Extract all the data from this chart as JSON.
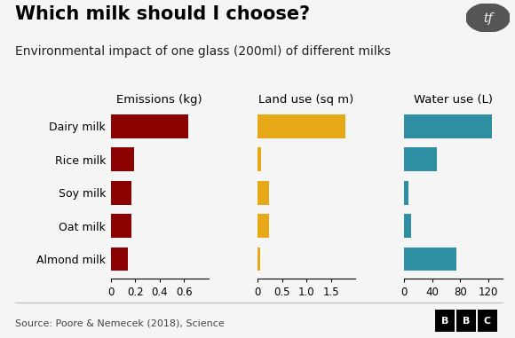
{
  "title": "Which milk should I choose?",
  "subtitle": "Environmental impact of one glass (200ml) of different milks",
  "categories": [
    "Dairy milk",
    "Rice milk",
    "Soy milk",
    "Oat milk",
    "Almond milk"
  ],
  "emissions": [
    0.636,
    0.188,
    0.172,
    0.172,
    0.14
  ],
  "land_use": [
    1.79,
    0.07,
    0.24,
    0.24,
    0.06
  ],
  "water_use": [
    125.6,
    46.4,
    5.6,
    9.8,
    74.3
  ],
  "emissions_color": "#8B0000",
  "land_use_color": "#E6A817",
  "water_use_color": "#2E8FA3",
  "background_color": "#f5f5f5",
  "emissions_xlabel": "Emissions (kg)",
  "land_use_xlabel": "Land use (sq m)",
  "water_use_xlabel": "Water use (L)",
  "emissions_xlim": [
    0,
    0.8
  ],
  "emissions_xticks": [
    0,
    0.2,
    0.4,
    0.6
  ],
  "land_use_xlim": [
    0,
    2.0
  ],
  "land_use_xticks": [
    0,
    0.5,
    1.0,
    1.5
  ],
  "water_use_xlim": [
    0,
    140
  ],
  "water_use_xticks": [
    0,
    40,
    80,
    120
  ],
  "source_text": "Source: Poore & Nemecek (2018), Science",
  "bbc_text": "BBC",
  "title_fontsize": 15,
  "subtitle_fontsize": 10,
  "col_label_fontsize": 9.5,
  "cat_label_fontsize": 9,
  "tick_fontsize": 8.5,
  "source_fontsize": 8,
  "tf_bg_color": "#555555",
  "separator_color": "#bbbbbb"
}
